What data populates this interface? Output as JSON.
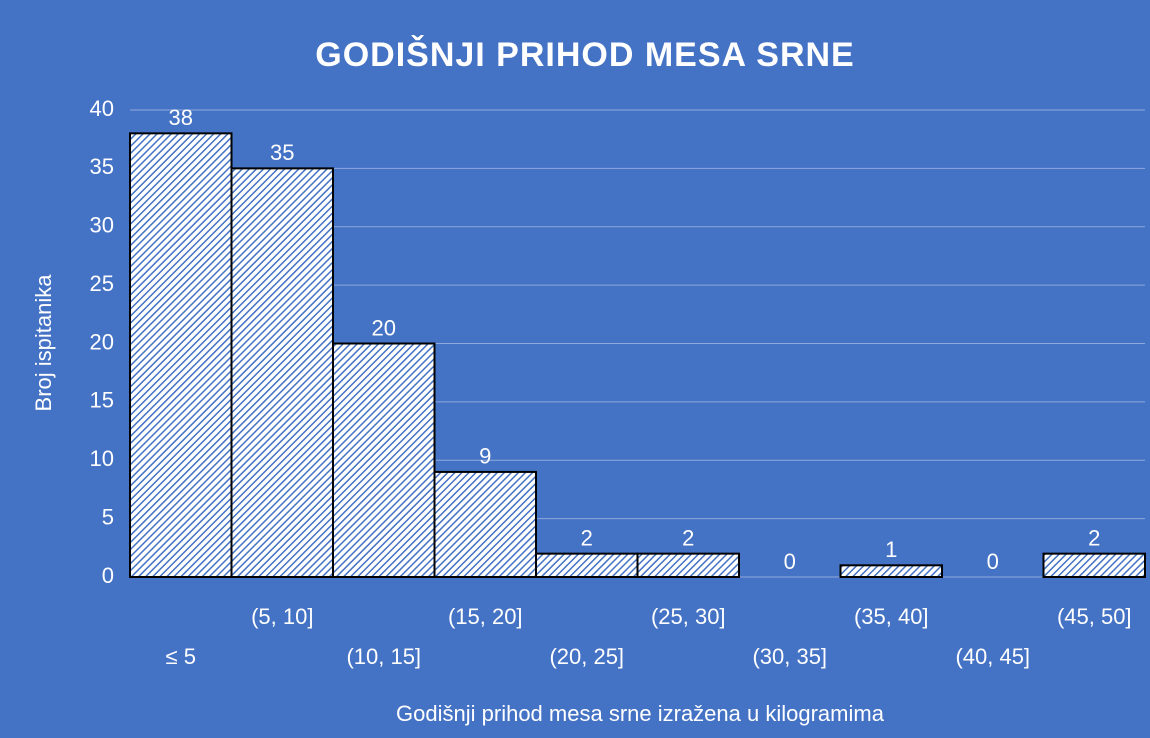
{
  "chart_data": {
    "type": "bar",
    "title": "GODIŠNJI PRIHOD MESA SRNE",
    "x_label": "Godišnji prihod mesa srne izražena u kilogramima",
    "y_label": "Broj ispitanika",
    "categories": [
      "≤ 5",
      "(5, 10]",
      "(10, 15]",
      "(15, 20]",
      "(20, 25]",
      "(25, 30]",
      "(30, 35]",
      "(35, 40]",
      "(40, 45]",
      "(45, 50]"
    ],
    "values": [
      38,
      35,
      20,
      9,
      2,
      2,
      0,
      1,
      0,
      2
    ],
    "color": "#4472c4",
    "ylim": [
      0,
      40
    ],
    "yticks": [
      0,
      5,
      10,
      15,
      20,
      25,
      30,
      35,
      40
    ],
    "grid": true
  }
}
